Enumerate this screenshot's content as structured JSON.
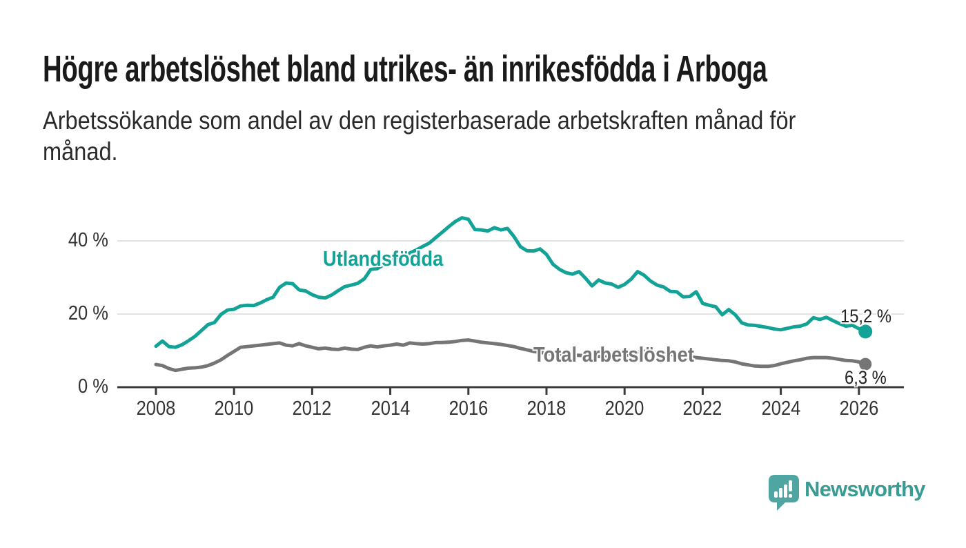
{
  "header": {
    "title": "Högre arbetslöshet bland utrikes- än inrikesfödda i Arboga",
    "subtitle_lines": [
      "Arbetssökande som andel av den registerbaserade arbetskraften månad för",
      "månad."
    ]
  },
  "branding": {
    "logo_text": "Newsworthy",
    "logo_icon": "newsworthy-speech-bubble-bar-chart-icon",
    "logo_icon_color": "#4ea5a1",
    "logo_text_color": "#389b94"
  },
  "palette": {
    "background": "#ffffff",
    "grid": "#d9d9d9",
    "axis": "#3b3b3b",
    "axis_text": "#333333",
    "end_label_text": "#222222"
  },
  "chart_data": {
    "type": "line",
    "unit": "%",
    "x_start_year": 2008,
    "x_points_per_year": 6,
    "x_tick_years": [
      2008,
      2010,
      2012,
      2014,
      2016,
      2018,
      2020,
      2022,
      2024,
      2026
    ],
    "y_ticks": [
      {
        "v": 0,
        "label": "0 %"
      },
      {
        "v": 20,
        "label": "20 %"
      },
      {
        "v": 40,
        "label": "40 %"
      }
    ],
    "ylim": [
      0,
      48
    ],
    "grid": "horizontal",
    "legend_position": "inline-labels",
    "series": [
      {
        "name": "Utlandsfödda",
        "color": "#12a296",
        "end_label": "15,2 %",
        "end_value": 15.2,
        "values": [
          11.2,
          12.6,
          11.1,
          10.9,
          11.6,
          12.7,
          13.9,
          15.5,
          17.1,
          17.7,
          19.9,
          21.1,
          21.3,
          22.2,
          22.4,
          22.3,
          23.0,
          23.9,
          24.6,
          27.3,
          28.5,
          28.3,
          26.6,
          26.3,
          25.3,
          24.6,
          24.4,
          25.2,
          26.4,
          27.5,
          27.9,
          28.4,
          29.6,
          32.2,
          32.4,
          33.5,
          34.5,
          35.3,
          35.7,
          36.7,
          37.5,
          38.5,
          39.4,
          40.9,
          42.4,
          43.9,
          45.3,
          46.3,
          45.9,
          43.1,
          43.0,
          42.7,
          43.6,
          43.0,
          43.4,
          41.2,
          38.4,
          37.3,
          37.2,
          37.8,
          36.3,
          33.6,
          32.2,
          31.3,
          30.9,
          31.6,
          29.8,
          27.7,
          29.3,
          28.5,
          28.2,
          27.3,
          28.1,
          29.5,
          31.6,
          30.6,
          29.0,
          27.9,
          27.4,
          26.2,
          26.1,
          24.7,
          24.8,
          26.1,
          22.9,
          22.4,
          22.0,
          19.8,
          21.2,
          19.8,
          17.6,
          17.0,
          16.9,
          16.6,
          16.3,
          15.9,
          15.7,
          16.1,
          16.5,
          16.7,
          17.3,
          19.0,
          18.5,
          19.1,
          18.2,
          17.4,
          16.7,
          16.9,
          16.0,
          15.2
        ]
      },
      {
        "name": "Total arbetslöshet",
        "color": "#757575",
        "end_label": "6,3 %",
        "end_value": 6.3,
        "values": [
          6.2,
          5.9,
          5.1,
          4.6,
          4.9,
          5.2,
          5.3,
          5.5,
          5.9,
          6.6,
          7.5,
          8.7,
          9.8,
          10.9,
          11.1,
          11.3,
          11.5,
          11.7,
          11.9,
          12.1,
          11.5,
          11.3,
          11.9,
          11.3,
          10.9,
          10.5,
          10.7,
          10.4,
          10.3,
          10.7,
          10.4,
          10.3,
          10.9,
          11.3,
          11.0,
          11.3,
          11.5,
          11.8,
          11.5,
          12.1,
          11.9,
          11.8,
          11.9,
          12.2,
          12.2,
          12.3,
          12.5,
          12.8,
          12.9,
          12.6,
          12.3,
          12.1,
          11.9,
          11.7,
          11.4,
          11.1,
          10.6,
          10.2,
          9.8,
          9.5,
          9.3,
          9.1,
          9.0,
          8.9,
          8.8,
          8.7,
          8.6,
          8.5,
          8.4,
          8.3,
          8.2,
          8.3,
          8.6,
          9.0,
          9.6,
          9.8,
          9.6,
          9.4,
          9.2,
          9.0,
          8.7,
          8.5,
          8.3,
          8.1,
          7.9,
          7.7,
          7.5,
          7.3,
          7.2,
          6.9,
          6.4,
          6.1,
          5.8,
          5.7,
          5.7,
          5.9,
          6.4,
          6.8,
          7.2,
          7.5,
          7.9,
          8.1,
          8.1,
          8.1,
          7.9,
          7.6,
          7.3,
          7.2,
          6.9,
          6.3
        ]
      }
    ]
  }
}
